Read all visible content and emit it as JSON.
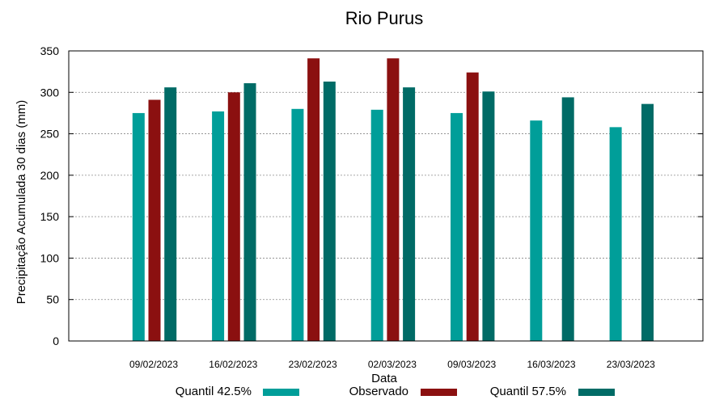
{
  "chart_data": {
    "type": "bar",
    "title": "Rio Purus",
    "xlabel": "Data",
    "ylabel": "Precipitação Acumulada 30 dias (mm)",
    "ylim": [
      0,
      350
    ],
    "yticks": [
      0,
      50,
      100,
      150,
      200,
      250,
      300,
      350
    ],
    "grid": true,
    "legend_position": "bottom",
    "categories": [
      "09/02/2023",
      "16/02/2023",
      "23/02/2023",
      "02/03/2023",
      "09/03/2023",
      "16/03/2023",
      "23/03/2023"
    ],
    "series": [
      {
        "name": "Quantil 42.5%",
        "color": "#009e99",
        "values": [
          275,
          277,
          280,
          279,
          275,
          266,
          258
        ]
      },
      {
        "name": "Observado",
        "color": "#8b1010",
        "values": [
          291,
          300,
          341,
          341,
          324,
          null,
          null
        ]
      },
      {
        "name": "Quantil 57.5%",
        "color": "#006b66",
        "values": [
          306,
          311,
          313,
          306,
          301,
          294,
          286
        ]
      }
    ]
  }
}
